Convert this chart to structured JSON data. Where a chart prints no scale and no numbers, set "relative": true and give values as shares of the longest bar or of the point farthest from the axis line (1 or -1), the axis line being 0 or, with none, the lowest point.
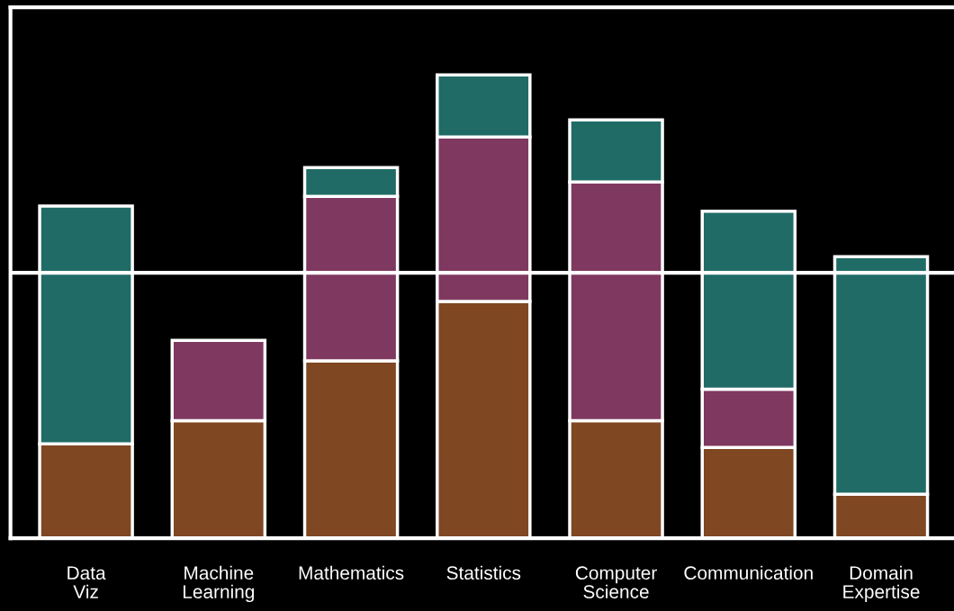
{
  "chart_data": {
    "type": "bar",
    "stacked": true,
    "relative": true,
    "categories": [
      "Data\nViz",
      "Machine\nLearning",
      "Mathematics",
      "Statistics",
      "Computer\nScience",
      "Communication",
      "Domain\nExpertise"
    ],
    "series": [
      {
        "color": "#7f4722",
        "values": [
          0.204,
          0.254,
          0.383,
          0.511,
          0.254,
          0.196,
          0.095
        ]
      },
      {
        "color": "#7f3860",
        "values": [
          null,
          0.173,
          0.355,
          0.355,
          0.515,
          0.126,
          null
        ]
      },
      {
        "color": "#206b66",
        "values": [
          0.513,
          null,
          0.062,
          0.134,
          0.134,
          0.384,
          0.513
        ]
      }
    ],
    "ref_lines": [
      {
        "axis": "y",
        "value": 0.573,
        "color": "#ffffff"
      }
    ],
    "grid": false,
    "legend": false
  }
}
